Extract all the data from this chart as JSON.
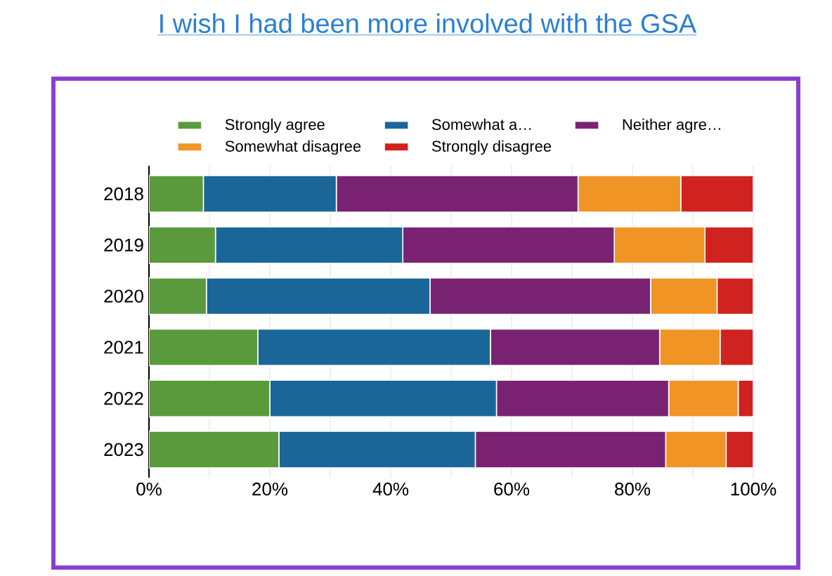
{
  "chart_data": {
    "type": "bar",
    "orientation": "horizontal",
    "stacked": true,
    "title": "I wish I had been more involved with the GSA",
    "categories": [
      "2018",
      "2019",
      "2020",
      "2021",
      "2022",
      "2023"
    ],
    "series": [
      {
        "name": "Strongly agree",
        "color": "#5a9a3c",
        "values": [
          9,
          11,
          9.5,
          18,
          20,
          21.5
        ]
      },
      {
        "name": "Somewhat a…",
        "color": "#1b6698",
        "values": [
          22,
          31,
          37,
          38.5,
          37.5,
          32.5
        ]
      },
      {
        "name": "Neither agre…",
        "color": "#7a2272",
        "values": [
          40,
          35,
          36.5,
          28,
          28.5,
          31.5
        ]
      },
      {
        "name": "Somewhat disagree",
        "color": "#f09426",
        "values": [
          17,
          15,
          11,
          10,
          11.5,
          10
        ]
      },
      {
        "name": "Strongly disagree",
        "color": "#d0231f",
        "values": [
          12,
          8,
          6,
          5.5,
          2.5,
          4.5
        ]
      }
    ],
    "xlim": [
      0,
      100
    ],
    "xticks": [
      {
        "value": 0,
        "label": "0%"
      },
      {
        "value": 10,
        "label": null
      },
      {
        "value": 20,
        "label": "20%"
      },
      {
        "value": 30,
        "label": null
      },
      {
        "value": 40,
        "label": "40%"
      },
      {
        "value": 50,
        "label": null
      },
      {
        "value": 60,
        "label": "60%"
      },
      {
        "value": 70,
        "label": null
      },
      {
        "value": 80,
        "label": "80%"
      },
      {
        "value": 90,
        "label": null
      },
      {
        "value": 100,
        "label": "100%"
      }
    ],
    "grid": "x",
    "legend": "top"
  }
}
